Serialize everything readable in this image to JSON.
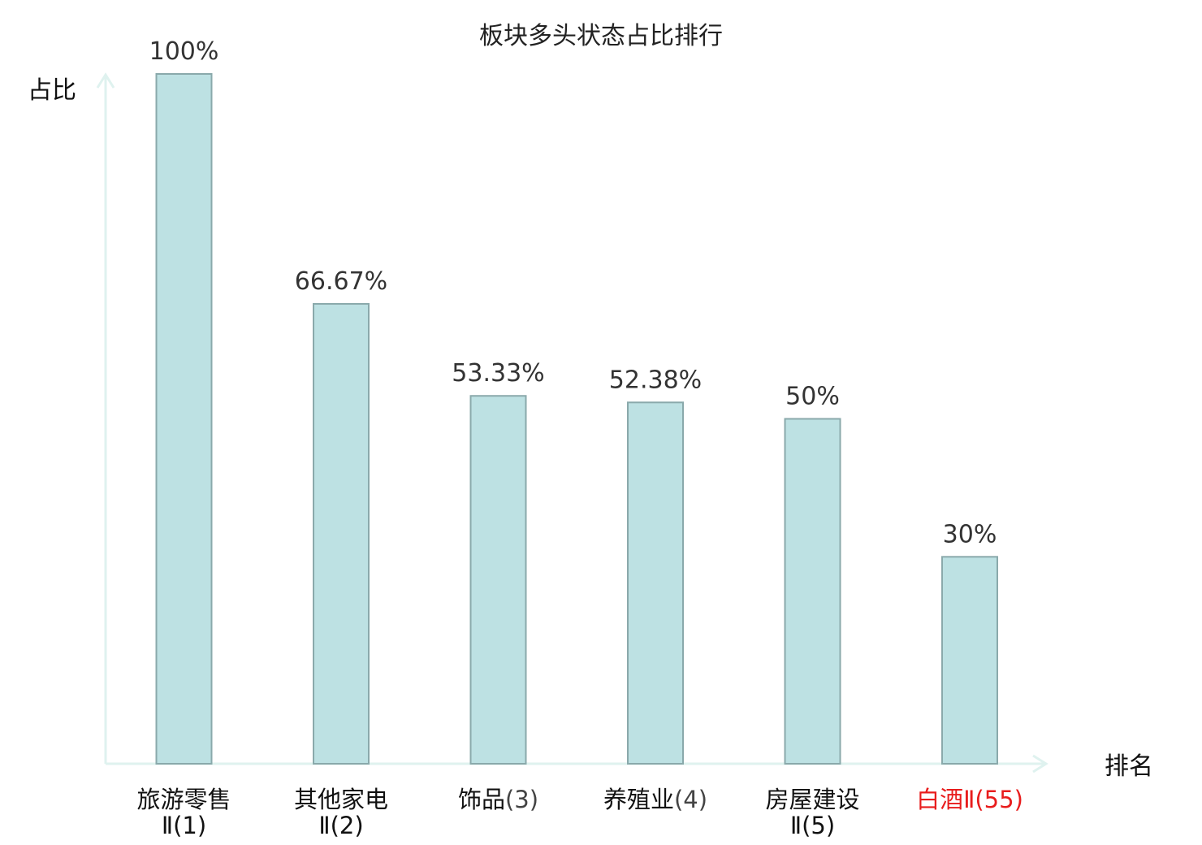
{
  "chart_data": {
    "type": "bar",
    "title": "板块多头状态占比排行",
    "xlabel": "排名",
    "ylabel": "占比",
    "ylim": [
      0,
      100
    ],
    "grid": false,
    "legend": "none",
    "categories": [
      {
        "name": "旅游零售",
        "rank": "Ⅱ(1)",
        "highlight": false
      },
      {
        "name": "其他家电",
        "rank": "Ⅱ(2)",
        "highlight": false
      },
      {
        "name": "饰品",
        "rank": "(3)",
        "highlight": false
      },
      {
        "name": "养殖业",
        "rank": "(4)",
        "highlight": false
      },
      {
        "name": "房屋建设",
        "rank": "Ⅱ(5)",
        "highlight": false
      },
      {
        "name": "白酒",
        "rank": "Ⅱ(55)",
        "highlight": true
      }
    ],
    "values": [
      100,
      66.67,
      53.33,
      52.38,
      50,
      30
    ],
    "value_labels": [
      "100%",
      "66.67%",
      "53.33%",
      "52.38%",
      "50%",
      "30%"
    ],
    "colors": {
      "bar_fill": "#bde1e3",
      "bar_stroke": "#8aa9ab",
      "axis": "#dff2ef",
      "highlight_text": "#e81c1c"
    }
  }
}
